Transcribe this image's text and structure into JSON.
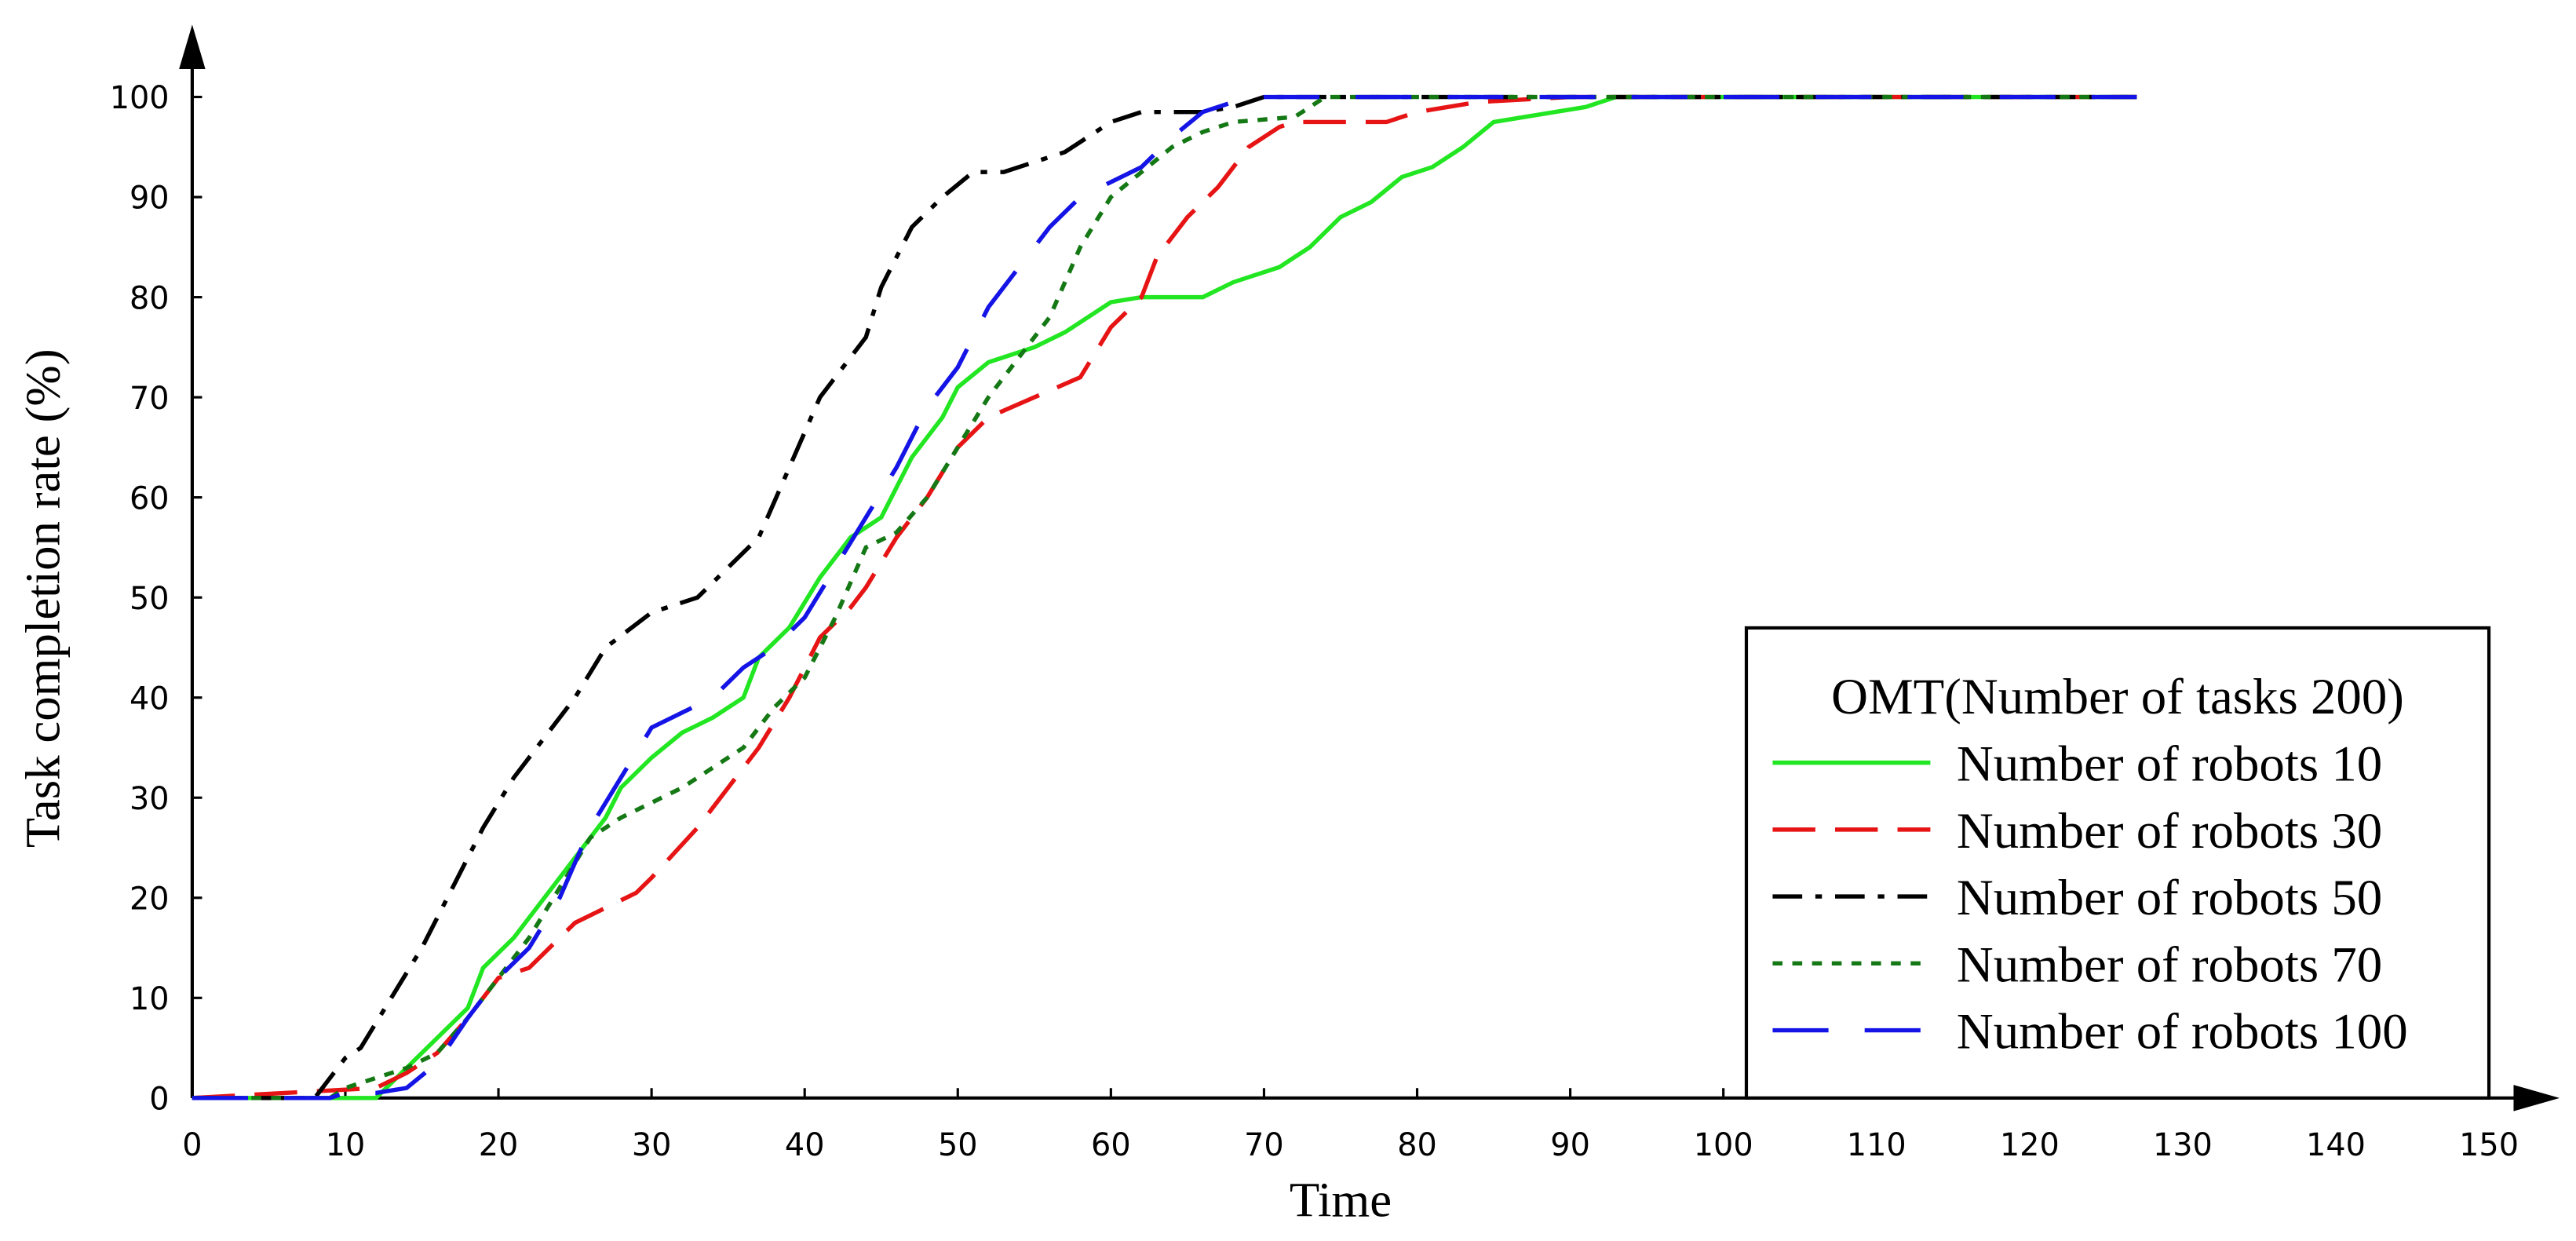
{
  "chart_data": {
    "type": "line",
    "x_label": "Time",
    "y_label": "Task completion rate (%)",
    "legend_title": "OMT(Number of tasks 200)",
    "legend": "lower right",
    "xlim": [
      0,
      150
    ],
    "ylim": [
      0,
      100
    ],
    "xticks": [
      0,
      10,
      20,
      30,
      40,
      50,
      60,
      70,
      80,
      90,
      100,
      110,
      120,
      130,
      140,
      150
    ],
    "yticks": [
      0,
      10,
      20,
      30,
      40,
      50,
      60,
      70,
      80,
      90,
      100
    ],
    "series": [
      {
        "name": "Number of robots 10",
        "color": "#22e622",
        "dash": "solid",
        "x": [
          0,
          12,
          14,
          16,
          18,
          19,
          21,
          23,
          25,
          27,
          28,
          30,
          32,
          34,
          36,
          37,
          39,
          41,
          43,
          45,
          47,
          49,
          50,
          52,
          55,
          57,
          60,
          62,
          66,
          68,
          71,
          73,
          75,
          77,
          79,
          81,
          83,
          85,
          87,
          89,
          91,
          93,
          127
        ],
        "values": [
          0,
          0,
          3,
          6,
          9,
          13,
          16,
          20,
          24,
          28,
          31,
          34,
          36.5,
          38,
          40,
          44,
          47,
          52,
          56,
          58,
          64,
          68,
          71,
          73.5,
          75,
          76.5,
          79.5,
          80,
          80,
          81.5,
          83,
          85,
          88,
          89.5,
          92,
          93,
          95,
          97.5,
          98,
          98.5,
          99,
          100,
          100
        ]
      },
      {
        "name": "Number of robots 30",
        "color": "#e61414",
        "dash": "dash",
        "x": [
          0,
          12,
          14,
          16,
          18,
          20,
          22,
          24,
          25,
          27,
          29,
          30,
          33,
          35,
          37,
          39,
          41,
          43,
          44,
          46,
          48,
          50,
          52,
          55,
          58,
          60,
          62,
          63,
          65,
          67,
          69,
          71,
          72,
          78,
          80,
          82,
          84,
          90,
          127
        ],
        "values": [
          0,
          1,
          2.5,
          4.5,
          8,
          12,
          13,
          16,
          17.5,
          19,
          20.5,
          22,
          27,
          31,
          35,
          40,
          46,
          49,
          51,
          56,
          60,
          65,
          68,
          70,
          72,
          77,
          80,
          84,
          88,
          91,
          95,
          97,
          97.5,
          97.5,
          98.5,
          99,
          99.5,
          100,
          100
        ]
      },
      {
        "name": "Number of robots 50",
        "color": "#000000",
        "dash": "dashdot",
        "x": [
          0,
          8,
          10,
          11,
          13,
          15,
          17,
          19,
          21,
          23,
          25,
          27,
          30,
          33,
          37,
          39,
          41,
          44,
          45,
          47,
          49,
          51,
          53,
          55,
          57,
          60,
          62,
          66,
          68,
          70,
          127
        ],
        "values": [
          0,
          0,
          4,
          5,
          10,
          15,
          21,
          27,
          32,
          36,
          40,
          45,
          48.5,
          50,
          56,
          63,
          70,
          76,
          81,
          87,
          90,
          92.5,
          92.5,
          93.5,
          94.5,
          97.5,
          98.5,
          98.5,
          99,
          100,
          100
        ]
      },
      {
        "name": "Number of robots 70",
        "color": "#147814",
        "dash": "dot",
        "x": [
          0,
          9,
          10,
          12,
          14,
          16,
          18,
          20,
          22,
          24,
          26,
          28,
          30,
          32,
          34,
          36,
          38,
          40,
          42,
          44,
          46,
          48,
          50,
          52,
          54,
          56,
          58,
          60,
          62,
          64,
          66,
          68,
          72,
          74,
          127
        ],
        "values": [
          0,
          0,
          1,
          2,
          3,
          4.5,
          8,
          12,
          16,
          21,
          26,
          28,
          29.5,
          31,
          33,
          35,
          39,
          42,
          48,
          55,
          56.5,
          60,
          65,
          70,
          74,
          78,
          85,
          90,
          92.5,
          95,
          96.5,
          97.5,
          98,
          100,
          100
        ]
      },
      {
        "name": "Number of robots 100",
        "color": "#1414e6",
        "dash": "longdash",
        "x": [
          0,
          9,
          10,
          12,
          14,
          16,
          18,
          20,
          22,
          24,
          26,
          28,
          30,
          32,
          34,
          36,
          38,
          40,
          42,
          44,
          46,
          48,
          50,
          52,
          54,
          56,
          58,
          60,
          62,
          64,
          66,
          68,
          70,
          127
        ],
        "values": [
          0,
          0,
          0.5,
          0.5,
          1,
          3.5,
          8,
          12,
          15,
          20,
          27,
          32,
          37,
          38.5,
          40,
          43,
          45,
          48,
          53,
          58,
          63,
          69,
          73,
          79,
          83,
          87,
          90,
          91.5,
          93,
          96,
          98.5,
          99.5,
          100,
          100
        ]
      }
    ]
  }
}
